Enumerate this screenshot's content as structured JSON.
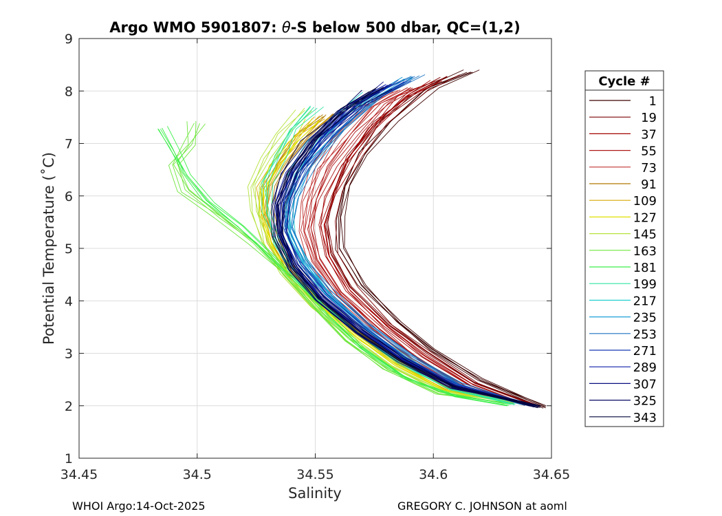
{
  "chart_data": {
    "type": "line",
    "title": "Argo WMO 5901807: θ-S below 500 dbar,  QC=(1,2)",
    "title_prefix": "Argo WMO 5901807: ",
    "title_theta": "θ",
    "title_suffix": "-S below 500 dbar,  QC=(1,2)",
    "xlabel": "Salinity",
    "ylabel": "Potential Temperature (˚C)",
    "xlim": [
      34.45,
      34.65
    ],
    "ylim": [
      1,
      9
    ],
    "xticks": [
      "34.45",
      "34.5",
      "34.55",
      "34.6",
      "34.65"
    ],
    "xtick_values": [
      34.45,
      34.5,
      34.55,
      34.6,
      34.65
    ],
    "yticks": [
      "1",
      "2",
      "3",
      "4",
      "5",
      "6",
      "7",
      "8",
      "9"
    ],
    "ytick_values": [
      1,
      2,
      3,
      4,
      5,
      6,
      7,
      8,
      9
    ],
    "grid": true,
    "legend": {
      "title": "Cycle #",
      "placement": "right",
      "entries": [
        {
          "label": "1",
          "color": "#3d0000"
        },
        {
          "label": "19",
          "color": "#7d0000"
        },
        {
          "label": "37",
          "color": "#a30000"
        },
        {
          "label": "55",
          "color": "#b01818"
        },
        {
          "label": "73",
          "color": "#c03030"
        },
        {
          "label": "91",
          "color": "#b07800"
        },
        {
          "label": "109",
          "color": "#d8a800"
        },
        {
          "label": "127",
          "color": "#e0e000"
        },
        {
          "label": "145",
          "color": "#b4e23a"
        },
        {
          "label": "163",
          "color": "#6ee63c"
        },
        {
          "label": "181",
          "color": "#3cef4a"
        },
        {
          "label": "199",
          "color": "#2ee6a0"
        },
        {
          "label": "217",
          "color": "#22cfd2"
        },
        {
          "label": "235",
          "color": "#1ea0d8"
        },
        {
          "label": "253",
          "color": "#1872c0"
        },
        {
          "label": "271",
          "color": "#1438b0"
        },
        {
          "label": "289",
          "color": "#0c1ea8"
        },
        {
          "label": "307",
          "color": "#080e80"
        },
        {
          "label": "325",
          "color": "#050860"
        },
        {
          "label": "343",
          "color": "#020438"
        }
      ]
    },
    "series": [
      {
        "name": "1",
        "color": "#3d0000",
        "points": [
          [
            34.614,
            8.38
          ],
          [
            34.598,
            8.05
          ],
          [
            34.582,
            7.45
          ],
          [
            34.57,
            6.8
          ],
          [
            34.563,
            6.2
          ],
          [
            34.56,
            5.6
          ],
          [
            34.561,
            5.0
          ],
          [
            34.57,
            4.3
          ],
          [
            34.585,
            3.6
          ],
          [
            34.6,
            3.05
          ],
          [
            34.62,
            2.5
          ],
          [
            34.647,
            1.98
          ]
        ]
      },
      {
        "name": "19",
        "color": "#7d0000",
        "points": [
          [
            34.608,
            8.28
          ],
          [
            34.594,
            7.98
          ],
          [
            34.578,
            7.4
          ],
          [
            34.566,
            6.75
          ],
          [
            34.559,
            6.1
          ],
          [
            34.556,
            5.5
          ],
          [
            34.558,
            4.9
          ],
          [
            34.566,
            4.25
          ],
          [
            34.582,
            3.55
          ],
          [
            34.598,
            3.0
          ],
          [
            34.618,
            2.45
          ],
          [
            34.644,
            2.0
          ]
        ]
      },
      {
        "name": "37",
        "color": "#a30000",
        "points": [
          [
            34.6,
            8.18
          ],
          [
            34.588,
            7.9
          ],
          [
            34.574,
            7.3
          ],
          [
            34.563,
            6.6
          ],
          [
            34.556,
            6.0
          ],
          [
            34.553,
            5.45
          ],
          [
            34.555,
            4.85
          ],
          [
            34.564,
            4.2
          ],
          [
            34.58,
            3.5
          ],
          [
            34.596,
            2.95
          ],
          [
            34.616,
            2.4
          ],
          [
            34.641,
            2.02
          ]
        ]
      },
      {
        "name": "55",
        "color": "#b01818",
        "points": [
          [
            34.592,
            8.05
          ],
          [
            34.58,
            7.75
          ],
          [
            34.568,
            7.2
          ],
          [
            34.558,
            6.55
          ],
          [
            34.551,
            5.95
          ],
          [
            34.549,
            5.4
          ],
          [
            34.552,
            4.8
          ],
          [
            34.561,
            4.15
          ],
          [
            34.578,
            3.45
          ],
          [
            34.594,
            2.9
          ],
          [
            34.614,
            2.35
          ],
          [
            34.639,
            2.03
          ]
        ]
      },
      {
        "name": "73",
        "color": "#c03030",
        "points": [
          [
            34.585,
            8.0
          ],
          [
            34.572,
            7.7
          ],
          [
            34.56,
            7.1
          ],
          [
            34.551,
            6.5
          ],
          [
            34.546,
            5.9
          ],
          [
            34.545,
            5.35
          ],
          [
            34.549,
            4.75
          ],
          [
            34.559,
            4.1
          ],
          [
            34.576,
            3.4
          ],
          [
            34.592,
            2.85
          ],
          [
            34.612,
            2.33
          ],
          [
            34.637,
            2.05
          ]
        ]
      },
      {
        "name": "91",
        "color": "#b07800",
        "points": [
          [
            34.555,
            7.55
          ],
          [
            34.545,
            7.15
          ],
          [
            34.537,
            6.7
          ],
          [
            34.531,
            6.2
          ],
          [
            34.53,
            5.7
          ],
          [
            34.533,
            5.15
          ],
          [
            34.541,
            4.55
          ],
          [
            34.553,
            4.0
          ],
          [
            34.569,
            3.4
          ],
          [
            34.586,
            2.85
          ],
          [
            34.607,
            2.35
          ],
          [
            34.634,
            2.06
          ]
        ]
      },
      {
        "name": "109",
        "color": "#d8a800",
        "points": [
          [
            34.552,
            7.5
          ],
          [
            34.542,
            7.1
          ],
          [
            34.534,
            6.65
          ],
          [
            34.528,
            6.15
          ],
          [
            34.528,
            5.65
          ],
          [
            34.532,
            5.1
          ],
          [
            34.54,
            4.5
          ],
          [
            34.552,
            3.95
          ],
          [
            34.568,
            3.35
          ],
          [
            34.585,
            2.8
          ],
          [
            34.606,
            2.32
          ],
          [
            34.633,
            2.07
          ]
        ]
      },
      {
        "name": "127",
        "color": "#e0e000",
        "points": [
          [
            34.548,
            7.45
          ],
          [
            34.54,
            7.05
          ],
          [
            34.532,
            6.6
          ],
          [
            34.527,
            6.1
          ],
          [
            34.527,
            5.6
          ],
          [
            34.531,
            5.05
          ],
          [
            34.539,
            4.45
          ],
          [
            34.551,
            3.9
          ],
          [
            34.567,
            3.3
          ],
          [
            34.584,
            2.78
          ],
          [
            34.605,
            2.3
          ],
          [
            34.632,
            2.08
          ]
        ]
      },
      {
        "name": "145",
        "color": "#b4e23a",
        "points": [
          [
            34.545,
            7.65
          ],
          [
            34.536,
            7.2
          ],
          [
            34.529,
            6.7
          ],
          [
            34.524,
            6.2
          ],
          [
            34.525,
            5.7
          ],
          [
            34.529,
            5.1
          ],
          [
            34.537,
            4.5
          ],
          [
            34.549,
            3.92
          ],
          [
            34.565,
            3.3
          ],
          [
            34.582,
            2.75
          ],
          [
            34.603,
            2.28
          ],
          [
            34.631,
            2.08
          ]
        ]
      },
      {
        "name": "163",
        "color": "#6ee63c",
        "points": [
          [
            34.5,
            7.4
          ],
          [
            34.497,
            7.0
          ],
          [
            34.49,
            6.6
          ],
          [
            34.495,
            6.1
          ],
          [
            34.51,
            5.6
          ],
          [
            34.524,
            5.1
          ],
          [
            34.536,
            4.55
          ],
          [
            34.549,
            3.9
          ],
          [
            34.563,
            3.25
          ],
          [
            34.58,
            2.7
          ],
          [
            34.602,
            2.25
          ],
          [
            34.63,
            2.05
          ]
        ]
      },
      {
        "name": "181",
        "color": "#3cef4a",
        "points": [
          [
            34.484,
            7.3
          ],
          [
            34.49,
            6.9
          ],
          [
            34.496,
            6.4
          ],
          [
            34.505,
            5.9
          ],
          [
            34.518,
            5.4
          ],
          [
            34.532,
            4.85
          ],
          [
            34.545,
            4.25
          ],
          [
            34.556,
            3.7
          ],
          [
            34.57,
            3.1
          ],
          [
            34.588,
            2.55
          ],
          [
            34.61,
            2.18
          ],
          [
            34.632,
            2.02
          ]
        ]
      },
      {
        "name": "199",
        "color": "#2ee6a0",
        "points": [
          [
            34.55,
            7.7
          ],
          [
            34.542,
            7.25
          ],
          [
            34.535,
            6.75
          ],
          [
            34.53,
            6.25
          ],
          [
            34.53,
            5.7
          ],
          [
            34.534,
            5.1
          ],
          [
            34.542,
            4.5
          ],
          [
            34.553,
            3.95
          ],
          [
            34.569,
            3.35
          ],
          [
            34.586,
            2.8
          ],
          [
            34.607,
            2.32
          ],
          [
            34.635,
            2.04
          ]
        ]
      },
      {
        "name": "217",
        "color": "#22cfd2",
        "points": [
          [
            34.572,
            7.95
          ],
          [
            34.56,
            7.55
          ],
          [
            34.548,
            7.0
          ],
          [
            34.54,
            6.4
          ],
          [
            34.537,
            5.8
          ],
          [
            34.539,
            5.2
          ],
          [
            34.546,
            4.6
          ],
          [
            34.556,
            4.05
          ],
          [
            34.571,
            3.45
          ],
          [
            34.588,
            2.9
          ],
          [
            34.609,
            2.38
          ],
          [
            34.637,
            2.04
          ]
        ]
      },
      {
        "name": "235",
        "color": "#1ea0d8",
        "points": [
          [
            34.59,
            8.25
          ],
          [
            34.574,
            7.85
          ],
          [
            34.558,
            7.2
          ],
          [
            34.546,
            6.55
          ],
          [
            34.54,
            5.95
          ],
          [
            34.539,
            5.35
          ],
          [
            34.545,
            4.75
          ],
          [
            34.555,
            4.15
          ],
          [
            34.571,
            3.5
          ],
          [
            34.588,
            2.93
          ],
          [
            34.609,
            2.4
          ],
          [
            34.638,
            2.03
          ]
        ]
      },
      {
        "name": "253",
        "color": "#1872c0",
        "points": [
          [
            34.592,
            8.3
          ],
          [
            34.576,
            7.9
          ],
          [
            34.56,
            7.25
          ],
          [
            34.547,
            6.6
          ],
          [
            34.54,
            6.0
          ],
          [
            34.539,
            5.4
          ],
          [
            34.545,
            4.8
          ],
          [
            34.556,
            4.2
          ],
          [
            34.572,
            3.55
          ],
          [
            34.59,
            2.97
          ],
          [
            34.611,
            2.42
          ],
          [
            34.64,
            2.02
          ]
        ]
      },
      {
        "name": "271",
        "color": "#1438b0",
        "points": [
          [
            34.588,
            8.2
          ],
          [
            34.572,
            7.8
          ],
          [
            34.556,
            7.15
          ],
          [
            34.544,
            6.5
          ],
          [
            34.538,
            5.9
          ],
          [
            34.537,
            5.3
          ],
          [
            34.543,
            4.7
          ],
          [
            34.554,
            4.1
          ],
          [
            34.57,
            3.48
          ],
          [
            34.588,
            2.92
          ],
          [
            34.61,
            2.38
          ],
          [
            34.641,
            2.02
          ]
        ]
      },
      {
        "name": "289",
        "color": "#0c1ea8",
        "points": [
          [
            34.58,
            8.1
          ],
          [
            34.565,
            7.7
          ],
          [
            34.551,
            7.1
          ],
          [
            34.541,
            6.45
          ],
          [
            34.535,
            5.85
          ],
          [
            34.535,
            5.25
          ],
          [
            34.541,
            4.65
          ],
          [
            34.552,
            4.05
          ],
          [
            34.569,
            3.43
          ],
          [
            34.587,
            2.88
          ],
          [
            34.609,
            2.35
          ],
          [
            34.642,
            2.01
          ]
        ]
      },
      {
        "name": "307",
        "color": "#080e80",
        "points": [
          [
            34.583,
            8.15
          ],
          [
            34.568,
            7.75
          ],
          [
            34.553,
            7.12
          ],
          [
            34.542,
            6.48
          ],
          [
            34.536,
            5.88
          ],
          [
            34.536,
            5.28
          ],
          [
            34.542,
            4.68
          ],
          [
            34.553,
            4.08
          ],
          [
            34.57,
            3.46
          ],
          [
            34.588,
            2.9
          ],
          [
            34.61,
            2.37
          ],
          [
            34.643,
            2.0
          ]
        ]
      },
      {
        "name": "325",
        "color": "#050860",
        "points": [
          [
            34.575,
            8.0
          ],
          [
            34.561,
            7.6
          ],
          [
            34.548,
            7.05
          ],
          [
            34.539,
            6.42
          ],
          [
            34.534,
            5.82
          ],
          [
            34.534,
            5.22
          ],
          [
            34.54,
            4.62
          ],
          [
            34.551,
            4.02
          ],
          [
            34.568,
            3.4
          ],
          [
            34.586,
            2.86
          ],
          [
            34.608,
            2.33
          ],
          [
            34.644,
            2.0
          ]
        ]
      },
      {
        "name": "343",
        "color": "#020438",
        "points": [
          [
            34.578,
            8.05
          ],
          [
            34.563,
            7.65
          ],
          [
            34.55,
            7.08
          ],
          [
            34.54,
            6.45
          ],
          [
            34.535,
            5.85
          ],
          [
            34.535,
            5.25
          ],
          [
            34.541,
            4.65
          ],
          [
            34.552,
            4.05
          ],
          [
            34.569,
            3.42
          ],
          [
            34.587,
            2.88
          ],
          [
            34.609,
            2.35
          ],
          [
            34.645,
            1.99
          ]
        ]
      }
    ]
  },
  "footer": {
    "left": "WHOI Argo:14-Oct-2025",
    "right": "GREGORY C. JOHNSON at aoml"
  }
}
